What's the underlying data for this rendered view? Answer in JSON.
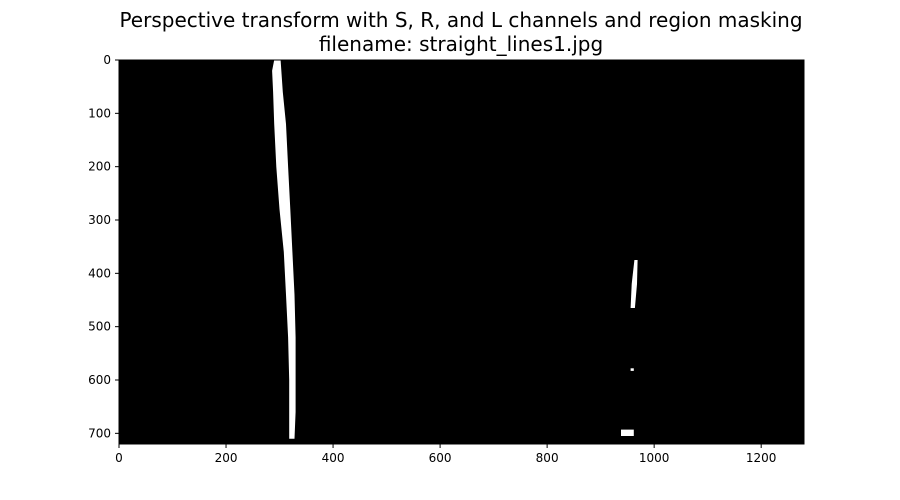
{
  "figure": {
    "title_line1": "Perspective transform with S, R, and L channels and region masking",
    "title_line2": "filename: straight_lines1.jpg"
  },
  "chart_data": {
    "type": "heatmap",
    "title": "Perspective transform with S, R, and L channels and region masking",
    "subtitle": "filename: straight_lines1.jpg",
    "xlabel": "",
    "ylabel": "",
    "xlim": [
      0,
      1280
    ],
    "ylim": [
      720,
      0
    ],
    "xticks": [
      0,
      200,
      400,
      600,
      800,
      1000,
      1200
    ],
    "yticks": [
      0,
      100,
      200,
      300,
      400,
      500,
      600,
      700
    ],
    "grid": false,
    "background_color": "#000000",
    "foreground_color": "#ffffff",
    "binary_mask_regions": [
      {
        "name": "left lane line",
        "points": [
          [
            290,
            0
          ],
          [
            302,
            0
          ],
          [
            306,
            60
          ],
          [
            312,
            120
          ],
          [
            316,
            200
          ],
          [
            320,
            280
          ],
          [
            324,
            360
          ],
          [
            328,
            440
          ],
          [
            330,
            520
          ],
          [
            330,
            600
          ],
          [
            330,
            660
          ],
          [
            328,
            710
          ],
          [
            318,
            710
          ],
          [
            318,
            660
          ],
          [
            318,
            600
          ],
          [
            316,
            520
          ],
          [
            312,
            440
          ],
          [
            308,
            360
          ],
          [
            300,
            280
          ],
          [
            294,
            200
          ],
          [
            290,
            120
          ],
          [
            288,
            60
          ],
          [
            286,
            20
          ]
        ]
      },
      {
        "name": "right lane line segment",
        "points": [
          [
            963,
            375
          ],
          [
            969,
            375
          ],
          [
            968,
            420
          ],
          [
            964,
            465
          ],
          [
            956,
            465
          ],
          [
            958,
            420
          ]
        ]
      },
      {
        "name": "right lane dot",
        "points": [
          [
            956,
            578
          ],
          [
            962,
            578
          ],
          [
            962,
            583
          ],
          [
            956,
            583
          ]
        ]
      },
      {
        "name": "right lane bottom blob",
        "points": [
          [
            938,
            693
          ],
          [
            962,
            693
          ],
          [
            962,
            705
          ],
          [
            938,
            705
          ]
        ]
      }
    ]
  }
}
